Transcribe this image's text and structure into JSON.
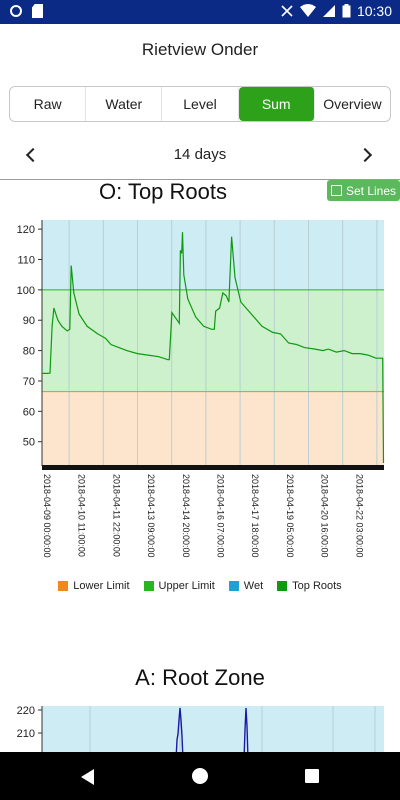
{
  "status_bar": {
    "time": "10:30"
  },
  "app": {
    "title": "Rietview Onder"
  },
  "tabs": [
    {
      "label": "Raw"
    },
    {
      "label": "Water"
    },
    {
      "label": "Level"
    },
    {
      "label": "Sum",
      "active": true
    },
    {
      "label": "Overview"
    }
  ],
  "period": {
    "label": "14 days"
  },
  "chart1": {
    "title": "O: Top Roots",
    "set_lines_label": "Set Lines",
    "legend": [
      {
        "label": "Lower Limit",
        "color": "#f0891a"
      },
      {
        "label": "Upper Limit",
        "color": "#26b81a"
      },
      {
        "label": "Wet",
        "color": "#1aa3d4"
      },
      {
        "label": "Top Roots",
        "color": "#0e9a0e"
      }
    ]
  },
  "chart2": {
    "title": "A: Root Zone"
  },
  "colors": {
    "active_tab": "#2ea11a",
    "status_bar": "#0b2a86",
    "set_lines": "#5cb85c"
  },
  "chart_data": [
    {
      "type": "area",
      "title": "O: Top Roots",
      "ylim": [
        42,
        123
      ],
      "yticks": [
        50,
        60,
        70,
        80,
        90,
        100,
        110,
        120
      ],
      "x_tick_labels": [
        "2018-04-09 00:00:00",
        "2018-04-10 11:00:00",
        "2018-04-11 22:00:00",
        "2018-04-13 09:00:00",
        "2018-04-14 20:00:00",
        "2018-04-16 07:00:00",
        "2018-04-17 18:00:00",
        "2018-04-19 05:00:00",
        "2018-04-20 16:00:00",
        "2018-04-22 03:00:00"
      ],
      "bands": {
        "lower_limit": 66.5,
        "upper_limit": 100,
        "wet_top": 123
      },
      "grid": true,
      "legend_position": "bottom",
      "series": [
        {
          "name": "Top Roots",
          "points": [
            [
              0.0,
              72.5
            ],
            [
              0.2,
              72.5
            ],
            [
              0.3,
              72.6
            ],
            [
              0.38,
              88
            ],
            [
              0.45,
              94
            ],
            [
              0.6,
              90
            ],
            [
              0.75,
              88
            ],
            [
              0.95,
              86.5
            ],
            [
              1.05,
              87
            ],
            [
              1.1,
              108
            ],
            [
              1.2,
              99
            ],
            [
              1.4,
              92
            ],
            [
              1.7,
              88
            ],
            [
              2.1,
              85.5
            ],
            [
              2.4,
              84
            ],
            [
              2.6,
              82
            ],
            [
              2.9,
              81
            ],
            [
              3.2,
              80
            ],
            [
              3.6,
              79
            ],
            [
              4.0,
              78.5
            ],
            [
              4.4,
              78
            ],
            [
              4.75,
              77
            ],
            [
              4.8,
              77
            ],
            [
              4.9,
              92.5
            ],
            [
              5.1,
              90
            ],
            [
              5.18,
              89
            ],
            [
              5.22,
              113
            ],
            [
              5.27,
              112
            ],
            [
              5.3,
              119
            ],
            [
              5.35,
              105
            ],
            [
              5.5,
              97
            ],
            [
              5.8,
              91
            ],
            [
              6.1,
              88
            ],
            [
              6.4,
              87
            ],
            [
              6.5,
              87
            ],
            [
              6.55,
              93
            ],
            [
              6.7,
              94
            ],
            [
              6.82,
              99
            ],
            [
              6.95,
              98
            ],
            [
              7.05,
              96
            ],
            [
              7.15,
              117.5
            ],
            [
              7.28,
              104
            ],
            [
              7.5,
              96
            ],
            [
              7.9,
              92
            ],
            [
              8.3,
              88
            ],
            [
              8.7,
              86
            ],
            [
              9.0,
              85.5
            ],
            [
              9.3,
              82.5
            ],
            [
              9.6,
              82
            ],
            [
              9.9,
              81
            ],
            [
              10.3,
              80.5
            ],
            [
              10.6,
              80
            ],
            [
              10.8,
              80.5
            ],
            [
              11.1,
              79.5
            ],
            [
              11.4,
              80
            ],
            [
              11.7,
              79
            ],
            [
              12.0,
              79
            ],
            [
              12.3,
              78.5
            ],
            [
              12.6,
              77.5
            ],
            [
              12.85,
              77.5
            ],
            [
              12.88,
              43
            ]
          ]
        }
      ]
    },
    {
      "type": "line",
      "title": "A: Root Zone",
      "yticks_visible": [
        210,
        220
      ],
      "series": [
        {
          "name": "Root Zone",
          "color": "#1a1aa8"
        }
      ]
    }
  ]
}
